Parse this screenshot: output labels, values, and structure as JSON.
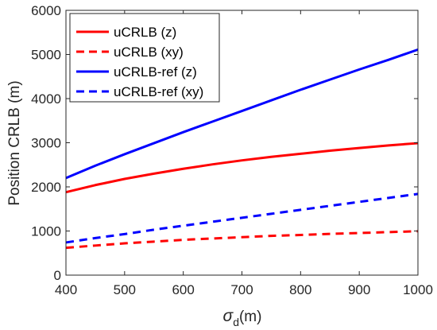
{
  "chart_data": {
    "type": "line",
    "xlabel": {
      "symbol": "σ",
      "subscript": "d",
      "unit": "(m)"
    },
    "ylabel": "Position CRLB (m)",
    "xlim": [
      400,
      1000
    ],
    "ylim": [
      0,
      6000
    ],
    "xticks": [
      400,
      500,
      600,
      700,
      800,
      900,
      1000
    ],
    "yticks": [
      0,
      1000,
      2000,
      3000,
      4000,
      5000,
      6000
    ],
    "grid": false,
    "legend_position": "top-left",
    "series": [
      {
        "name": "uCRLB (z)",
        "color": "#ff0000",
        "style": "solid",
        "x": [
          400,
          450,
          500,
          550,
          600,
          650,
          700,
          750,
          800,
          850,
          900,
          950,
          1000
        ],
        "y": [
          1880,
          2040,
          2180,
          2300,
          2410,
          2510,
          2600,
          2680,
          2750,
          2820,
          2880,
          2940,
          2990
        ]
      },
      {
        "name": "uCRLB (xy)",
        "color": "#ff0000",
        "style": "dashed",
        "x": [
          400,
          450,
          500,
          550,
          600,
          650,
          700,
          750,
          800,
          850,
          900,
          950,
          1000
        ],
        "y": [
          620,
          670,
          720,
          760,
          800,
          830,
          860,
          890,
          910,
          935,
          955,
          975,
          995
        ]
      },
      {
        "name": "uCRLB-ref (z)",
        "color": "#0000ff",
        "style": "solid",
        "x": [
          400,
          450,
          500,
          550,
          600,
          650,
          700,
          750,
          800,
          850,
          900,
          950,
          1000
        ],
        "y": [
          2200,
          2480,
          2740,
          2990,
          3240,
          3480,
          3720,
          3960,
          4200,
          4430,
          4660,
          4880,
          5110
        ]
      },
      {
        "name": "uCRLB-ref (xy)",
        "color": "#0000ff",
        "style": "dashed",
        "x": [
          400,
          450,
          500,
          550,
          600,
          650,
          700,
          750,
          800,
          850,
          900,
          950,
          1000
        ],
        "y": [
          740,
          840,
          930,
          1030,
          1120,
          1210,
          1300,
          1390,
          1480,
          1570,
          1660,
          1750,
          1840
        ]
      }
    ]
  }
}
